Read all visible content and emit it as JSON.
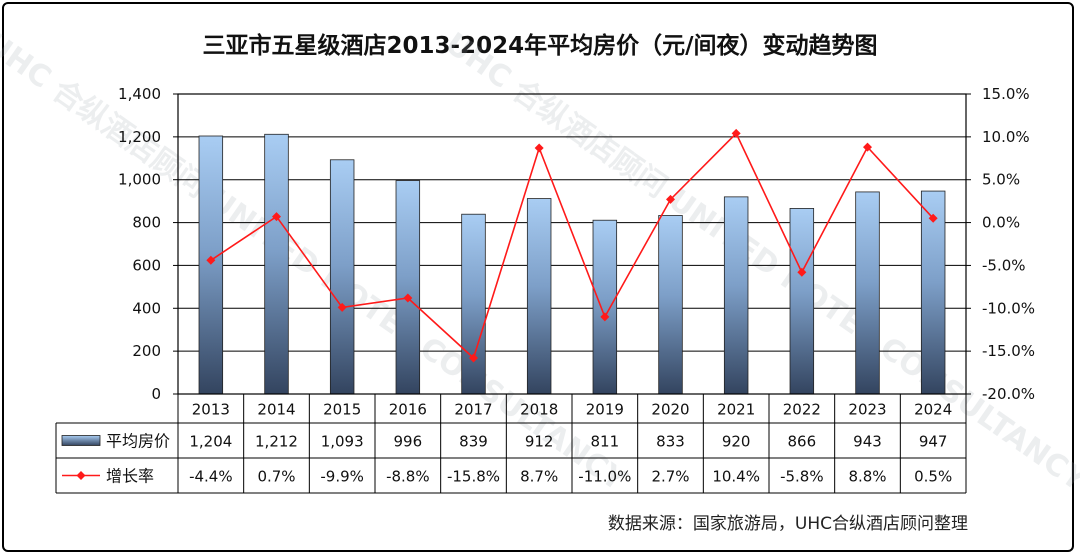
{
  "title": "三亚市五星级酒店2013-2024年平均房价（元/间夜）变动趋势图",
  "source": "数据来源：国家旅游局，UHC合纵酒店顾问整理",
  "watermark": "UHC 合纵酒店顾问 UNITED HOTEL CONSULTANCY",
  "colors": {
    "bar_top": "#a9cdf3",
    "bar_bottom": "#33445f",
    "line": "#ff1a1a",
    "grid": "#000000"
  },
  "chart_data": {
    "type": "bar+line",
    "categories": [
      "2013",
      "2014",
      "2015",
      "2016",
      "2017",
      "2018",
      "2019",
      "2020",
      "2021",
      "2022",
      "2023",
      "2024"
    ],
    "series": [
      {
        "name": "平均房价",
        "type": "bar",
        "axis": "left",
        "values": [
          1204,
          1212,
          1093,
          996,
          839,
          912,
          811,
          833,
          920,
          866,
          943,
          947
        ],
        "labels": [
          "1,204",
          "1,212",
          "1,093",
          "996",
          "839",
          "912",
          "811",
          "833",
          "920",
          "866",
          "943",
          "947"
        ]
      },
      {
        "name": "增长率",
        "type": "line",
        "axis": "right",
        "values": [
          -4.4,
          0.7,
          -9.9,
          -8.8,
          -15.8,
          8.7,
          -11.0,
          2.7,
          10.4,
          -5.8,
          8.8,
          0.5
        ],
        "labels": [
          "-4.4%",
          "0.7%",
          "-9.9%",
          "-8.8%",
          "-15.8%",
          "8.7%",
          "-11.0%",
          "2.7%",
          "10.4%",
          "-5.8%",
          "8.8%",
          "0.5%"
        ]
      }
    ],
    "y_left": {
      "min": 0,
      "max": 1400,
      "step": 200,
      "tick_labels": [
        "0",
        "200",
        "400",
        "600",
        "800",
        "1,000",
        "1,200",
        "1,400"
      ]
    },
    "y_right": {
      "min": -20,
      "max": 15,
      "step": 5,
      "tick_labels": [
        "-20.0%",
        "-15.0%",
        "-10.0%",
        "-5.0%",
        "0.0%",
        "5.0%",
        "10.0%",
        "15.0%"
      ]
    },
    "legend_position": "data-table-below"
  }
}
